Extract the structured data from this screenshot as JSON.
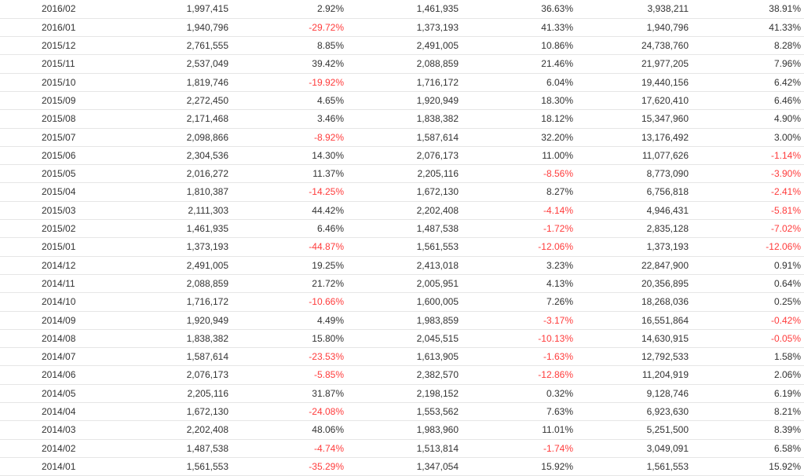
{
  "colors": {
    "text": "#333333",
    "negative": "#ff3b3b",
    "row_border": "#e6e6e6"
  },
  "table": {
    "rows": [
      [
        "2016/02",
        "1,997,415",
        "2.92%",
        "1,461,935",
        "36.63%",
        "3,938,211",
        "38.91%"
      ],
      [
        "2016/01",
        "1,940,796",
        "-29.72%",
        "1,373,193",
        "41.33%",
        "1,940,796",
        "41.33%"
      ],
      [
        "2015/12",
        "2,761,555",
        "8.85%",
        "2,491,005",
        "10.86%",
        "24,738,760",
        "8.28%"
      ],
      [
        "2015/11",
        "2,537,049",
        "39.42%",
        "2,088,859",
        "21.46%",
        "21,977,205",
        "7.96%"
      ],
      [
        "2015/10",
        "1,819,746",
        "-19.92%",
        "1,716,172",
        "6.04%",
        "19,440,156",
        "6.42%"
      ],
      [
        "2015/09",
        "2,272,450",
        "4.65%",
        "1,920,949",
        "18.30%",
        "17,620,410",
        "6.46%"
      ],
      [
        "2015/08",
        "2,171,468",
        "3.46%",
        "1,838,382",
        "18.12%",
        "15,347,960",
        "4.90%"
      ],
      [
        "2015/07",
        "2,098,866",
        "-8.92%",
        "1,587,614",
        "32.20%",
        "13,176,492",
        "3.00%"
      ],
      [
        "2015/06",
        "2,304,536",
        "14.30%",
        "2,076,173",
        "11.00%",
        "11,077,626",
        "-1.14%"
      ],
      [
        "2015/05",
        "2,016,272",
        "11.37%",
        "2,205,116",
        "-8.56%",
        "8,773,090",
        "-3.90%"
      ],
      [
        "2015/04",
        "1,810,387",
        "-14.25%",
        "1,672,130",
        "8.27%",
        "6,756,818",
        "-2.41%"
      ],
      [
        "2015/03",
        "2,111,303",
        "44.42%",
        "2,202,408",
        "-4.14%",
        "4,946,431",
        "-5.81%"
      ],
      [
        "2015/02",
        "1,461,935",
        "6.46%",
        "1,487,538",
        "-1.72%",
        "2,835,128",
        "-7.02%"
      ],
      [
        "2015/01",
        "1,373,193",
        "-44.87%",
        "1,561,553",
        "-12.06%",
        "1,373,193",
        "-12.06%"
      ],
      [
        "2014/12",
        "2,491,005",
        "19.25%",
        "2,413,018",
        "3.23%",
        "22,847,900",
        "0.91%"
      ],
      [
        "2014/11",
        "2,088,859",
        "21.72%",
        "2,005,951",
        "4.13%",
        "20,356,895",
        "0.64%"
      ],
      [
        "2014/10",
        "1,716,172",
        "-10.66%",
        "1,600,005",
        "7.26%",
        "18,268,036",
        "0.25%"
      ],
      [
        "2014/09",
        "1,920,949",
        "4.49%",
        "1,983,859",
        "-3.17%",
        "16,551,864",
        "-0.42%"
      ],
      [
        "2014/08",
        "1,838,382",
        "15.80%",
        "2,045,515",
        "-10.13%",
        "14,630,915",
        "-0.05%"
      ],
      [
        "2014/07",
        "1,587,614",
        "-23.53%",
        "1,613,905",
        "-1.63%",
        "12,792,533",
        "1.58%"
      ],
      [
        "2014/06",
        "2,076,173",
        "-5.85%",
        "2,382,570",
        "-12.86%",
        "11,204,919",
        "2.06%"
      ],
      [
        "2014/05",
        "2,205,116",
        "31.87%",
        "2,198,152",
        "0.32%",
        "9,128,746",
        "6.19%"
      ],
      [
        "2014/04",
        "1,672,130",
        "-24.08%",
        "1,553,562",
        "7.63%",
        "6,923,630",
        "8.21%"
      ],
      [
        "2014/03",
        "2,202,408",
        "48.06%",
        "1,983,960",
        "11.01%",
        "5,251,500",
        "8.39%"
      ],
      [
        "2014/02",
        "1,487,538",
        "-4.74%",
        "1,513,814",
        "-1.74%",
        "3,049,091",
        "6.58%"
      ],
      [
        "2014/01",
        "1,561,553",
        "-35.29%",
        "1,347,054",
        "15.92%",
        "1,561,553",
        "15.92%"
      ]
    ]
  }
}
